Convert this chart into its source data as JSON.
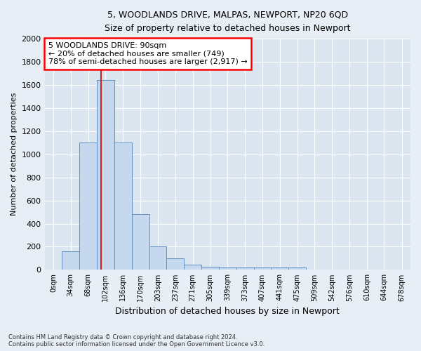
{
  "title1": "5, WOODLANDS DRIVE, MALPAS, NEWPORT, NP20 6QD",
  "title2": "Size of property relative to detached houses in Newport",
  "xlabel": "Distribution of detached houses by size in Newport",
  "ylabel": "Number of detached properties",
  "categories": [
    "0sqm",
    "34sqm",
    "68sqm",
    "102sqm",
    "136sqm",
    "170sqm",
    "203sqm",
    "237sqm",
    "271sqm",
    "305sqm",
    "339sqm",
    "373sqm",
    "407sqm",
    "441sqm",
    "475sqm",
    "509sqm",
    "542sqm",
    "576sqm",
    "610sqm",
    "644sqm",
    "678sqm"
  ],
  "values": [
    0,
    160,
    1100,
    1640,
    1100,
    480,
    200,
    100,
    45,
    25,
    20,
    20,
    20,
    20,
    20,
    0,
    0,
    0,
    0,
    0,
    0
  ],
  "bar_color": "#c5d8ee",
  "bar_edge_color": "#6090c0",
  "vline_x_index": 2.74,
  "annotation_text": "5 WOODLANDS DRIVE: 90sqm\n← 20% of detached houses are smaller (749)\n78% of semi-detached houses are larger (2,917) →",
  "annotation_box_color": "white",
  "annotation_box_edgecolor": "red",
  "vline_color": "#cc2222",
  "footer1": "Contains HM Land Registry data © Crown copyright and database right 2024.",
  "footer2": "Contains public sector information licensed under the Open Government Licence v3.0.",
  "ylim": [
    0,
    2000
  ],
  "yticks": [
    0,
    200,
    400,
    600,
    800,
    1000,
    1200,
    1400,
    1600,
    1800,
    2000
  ],
  "bg_color": "#e8eef5",
  "grid_color": "#ffffff",
  "axes_bg_color": "#dce6f0"
}
